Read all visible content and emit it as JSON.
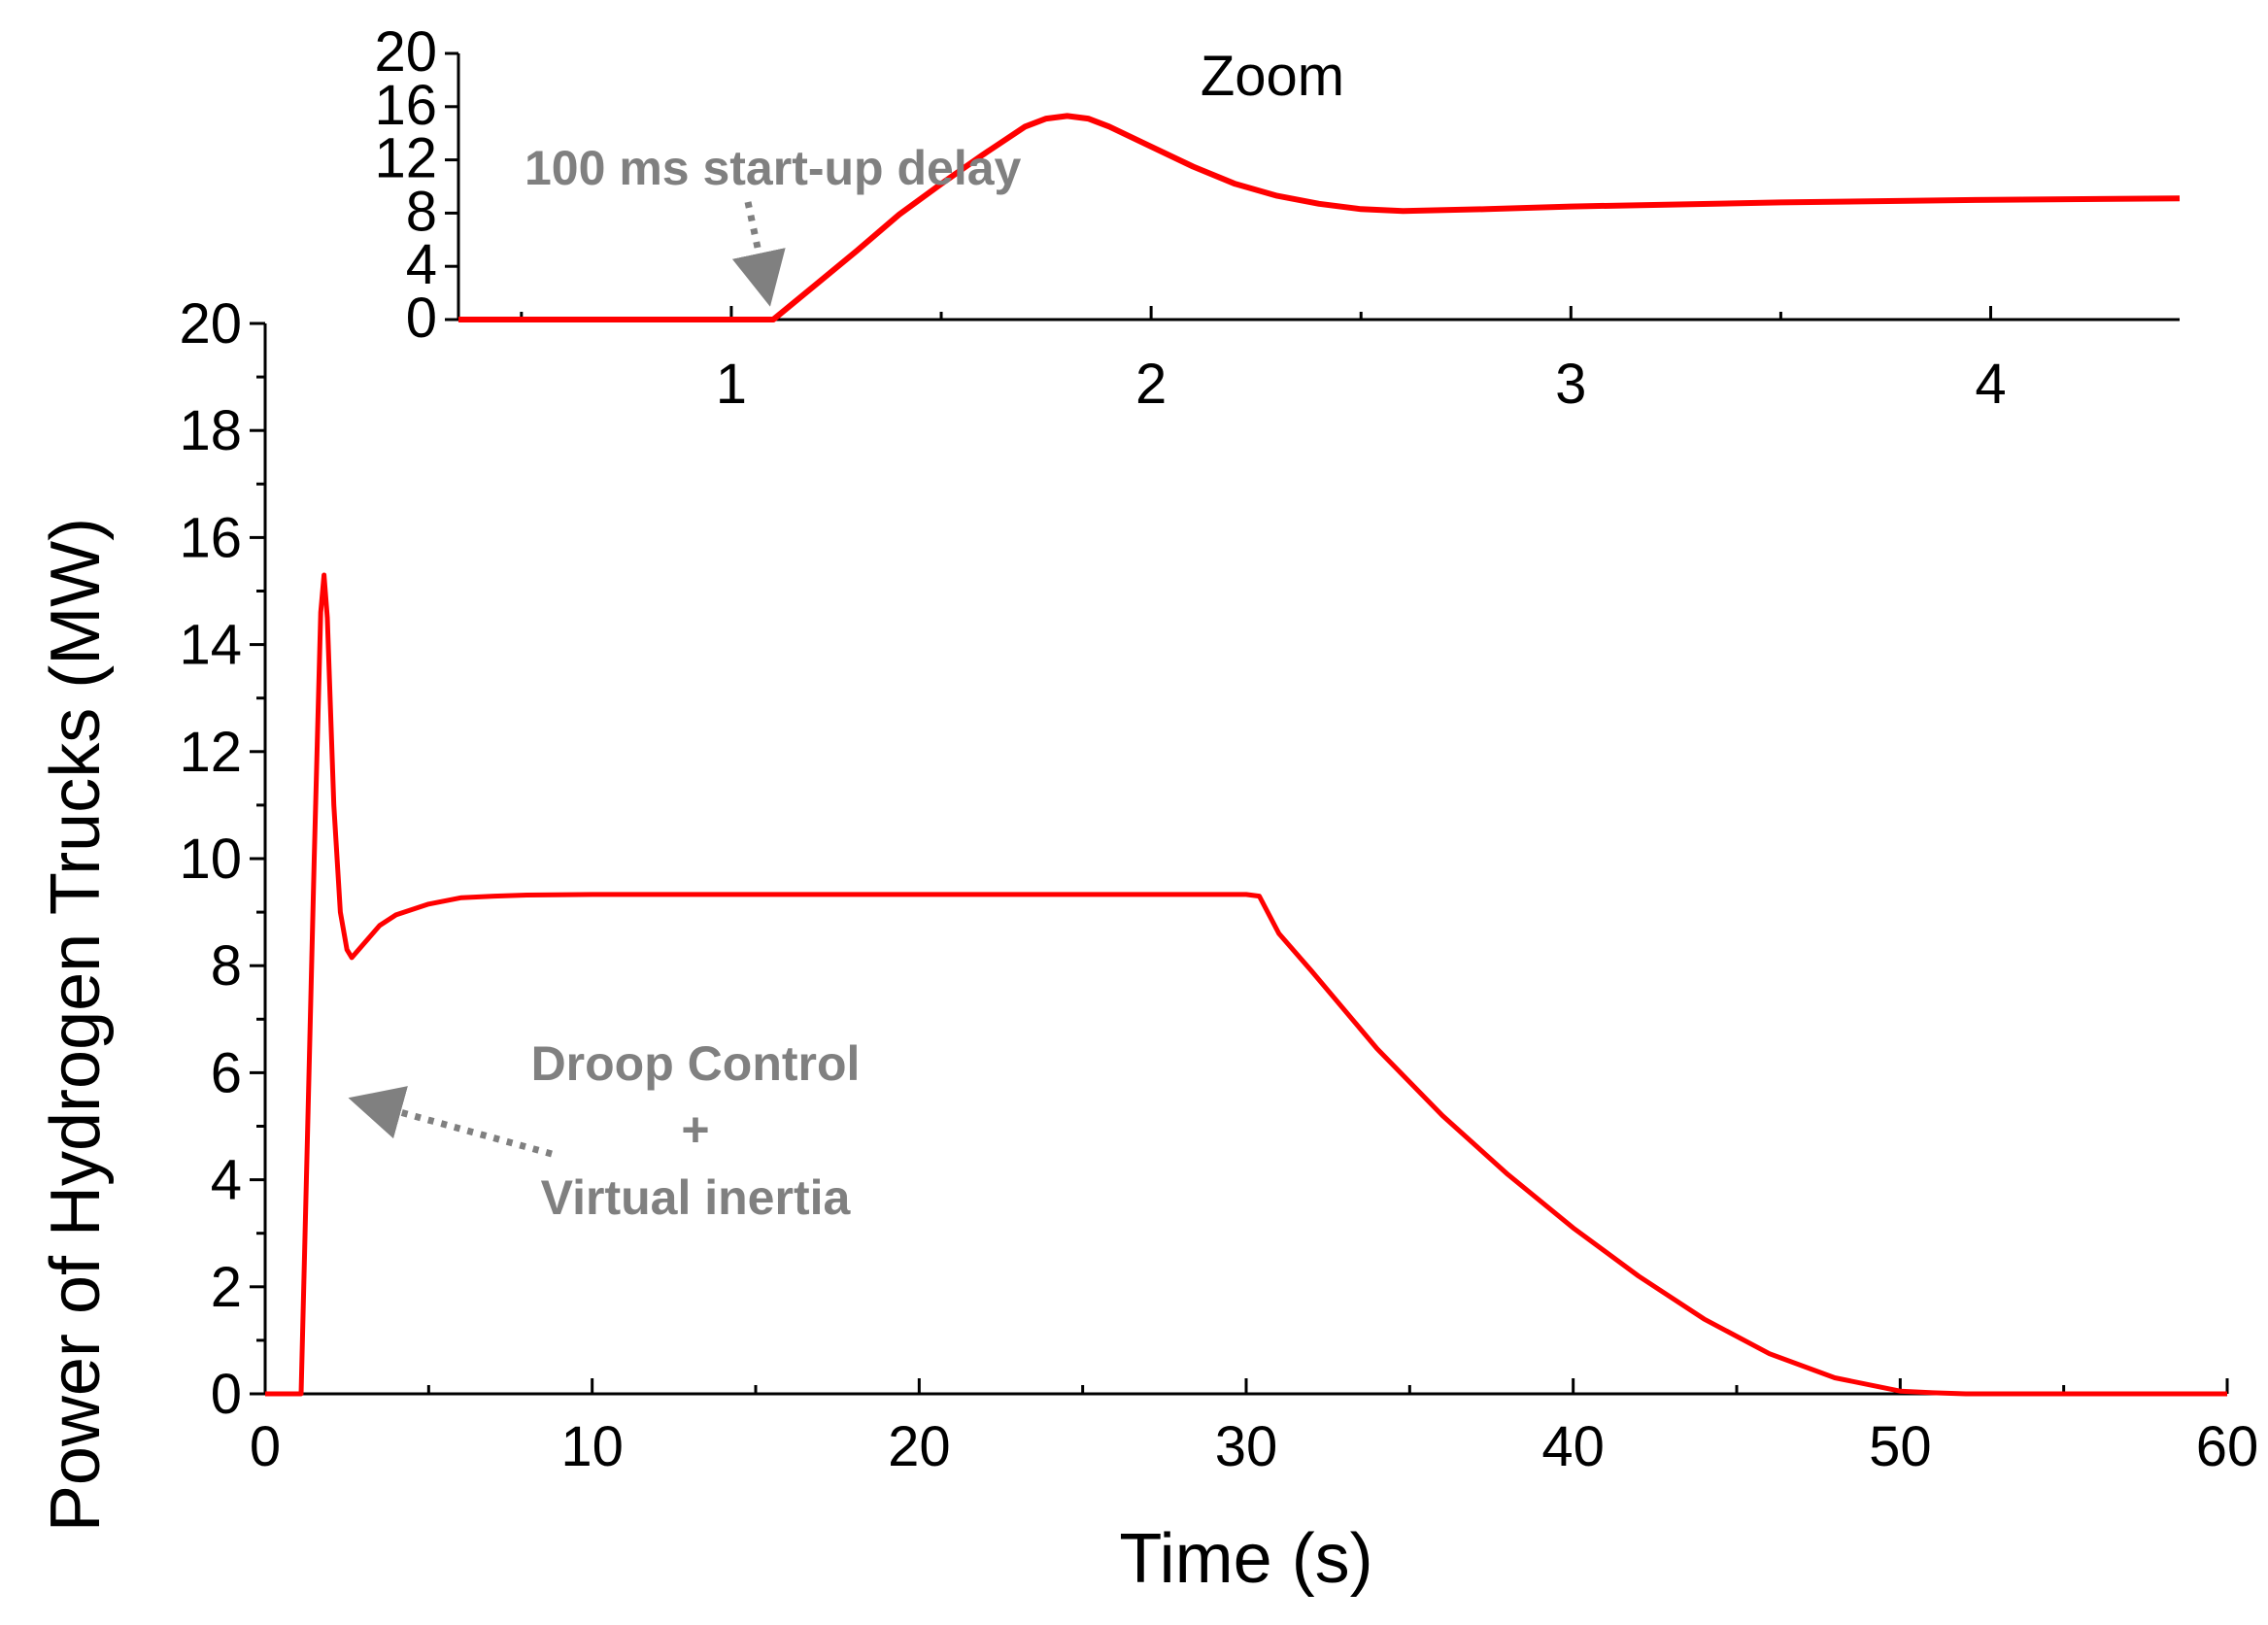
{
  "chart_data": [
    {
      "type": "line",
      "title": "",
      "xlabel": "Time (s)",
      "ylabel": "Power of Hydrogen Trucks (MW)",
      "xlim": [
        0,
        60
      ],
      "ylim": [
        0,
        20
      ],
      "x_ticks": [
        "0",
        "10",
        "20",
        "30",
        "40",
        "50",
        "60"
      ],
      "y_ticks": [
        "0",
        "2",
        "4",
        "6",
        "8",
        "10",
        "12",
        "14",
        "16",
        "18",
        "20"
      ],
      "series": [
        {
          "name": "Power of Hydrogen Trucks",
          "color": "#ff0000",
          "x": [
            0,
            1.0,
            1.1,
            1.3,
            1.5,
            1.7,
            1.8,
            1.9,
            2.1,
            2.3,
            2.5,
            2.65,
            3.0,
            3.5,
            4.0,
            5.0,
            6.0,
            7.0,
            8.0,
            10.0,
            20.0,
            30.0,
            30.4,
            31.0,
            32.0,
            34.0,
            36.0,
            38.0,
            40.0,
            42.0,
            44.0,
            46.0,
            48.0,
            50.0,
            51.0,
            52.0,
            53.0,
            54.0,
            60.0
          ],
          "y": [
            0,
            0,
            0,
            5.0,
            10.0,
            14.6,
            15.3,
            14.5,
            11.0,
            9.0,
            8.3,
            8.15,
            8.4,
            8.75,
            8.95,
            9.15,
            9.27,
            9.3,
            9.32,
            9.33,
            9.33,
            9.33,
            9.3,
            8.6,
            7.9,
            6.45,
            5.2,
            4.1,
            3.1,
            2.2,
            1.4,
            0.75,
            0.3,
            0.05,
            0.02,
            0.0,
            0.0,
            0.0,
            0.0
          ]
        }
      ],
      "annotations": [
        {
          "text_lines": [
            "Droop Control",
            "+",
            "Virtual inertia"
          ],
          "points_to": [
            2.2,
            5.5
          ]
        }
      ]
    },
    {
      "type": "line",
      "title": "Zoom",
      "xlabel": "",
      "ylabel": "",
      "xlim": [
        0.35,
        4.45
      ],
      "ylim": [
        0,
        20
      ],
      "x_ticks": [
        "1",
        "2",
        "3",
        "4"
      ],
      "y_ticks": [
        "0",
        "4",
        "8",
        "12",
        "16",
        "20"
      ],
      "series": [
        {
          "name": "Power of Hydrogen Trucks (zoom)",
          "color": "#ff0000",
          "x": [
            0.35,
            1.0,
            1.1,
            1.2,
            1.3,
            1.4,
            1.5,
            1.6,
            1.7,
            1.75,
            1.8,
            1.85,
            1.9,
            2.0,
            2.1,
            2.2,
            2.3,
            2.4,
            2.5,
            2.6,
            2.8,
            3.0,
            3.5,
            4.0,
            4.45
          ],
          "y": [
            0,
            0,
            0,
            2.6,
            5.2,
            7.9,
            10.2,
            12.4,
            14.5,
            15.1,
            15.3,
            15.1,
            14.5,
            13.0,
            11.5,
            10.2,
            9.3,
            8.7,
            8.3,
            8.15,
            8.3,
            8.5,
            8.8,
            9.0,
            9.1
          ]
        }
      ],
      "annotations": [
        {
          "text": "100 ms start-up delay",
          "points_to": [
            1.1,
            0
          ]
        }
      ]
    }
  ]
}
